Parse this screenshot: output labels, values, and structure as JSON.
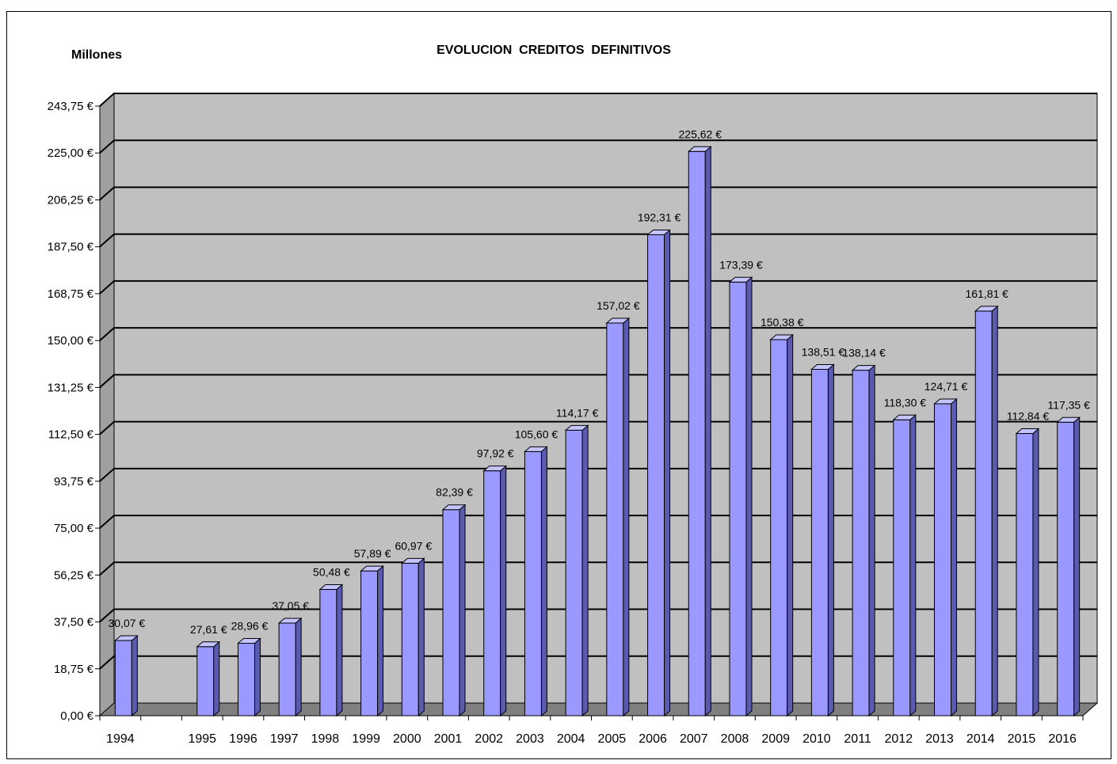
{
  "chart_data": {
    "type": "bar",
    "title": "EVOLUCION  CREDITOS  DEFINITIVOS",
    "unit_label": "Millones",
    "categories": [
      "1994",
      "1995",
      "1996",
      "1997",
      "1998",
      "1999",
      "2000",
      "2001",
      "2002",
      "2003",
      "2004",
      "2005",
      "2006",
      "2007",
      "2008",
      "2009",
      "2010",
      "2011",
      "2012",
      "2013",
      "2014",
      "2015",
      "2016"
    ],
    "values": [
      30.07,
      27.61,
      28.96,
      37.05,
      50.48,
      57.89,
      60.97,
      82.39,
      97.92,
      105.6,
      114.17,
      157.02,
      192.31,
      225.62,
      173.39,
      150.38,
      138.51,
      138.14,
      118.3,
      124.71,
      161.81,
      112.84,
      117.35
    ],
    "data_labels": [
      "30,07 €",
      "27,61 €",
      "28,96 €",
      "37,05 €",
      "50,48 €",
      "57,89 €",
      "60,97 €",
      "82,39 €",
      "97,92 €",
      "105,60 €",
      "114,17 €",
      "157,02 €",
      "192,31 €",
      "225,62 €",
      "173,39 €",
      "150,38 €",
      "138,51 €",
      "138,14 €",
      "118,30 €",
      "124,71 €",
      "161,81 €",
      "112,84 €",
      "117,35 €"
    ],
    "y_ticks": [
      "0,00 €",
      "18,75 €",
      "37,50 €",
      "56,25 €",
      "75,00 €",
      "93,75 €",
      "112,50 €",
      "131,25 €",
      "150,00 €",
      "168,75 €",
      "187,50 €",
      "206,25 €",
      "225,00 €",
      "243,75 €"
    ],
    "ylim": [
      0,
      243.75
    ],
    "grid": true,
    "colors": {
      "bar_front": "#9999ff",
      "bar_side": "#5a5ab0",
      "bar_top": "#c4c4ff",
      "plot_back": "#c0c0c0",
      "floor": "#808080"
    }
  }
}
